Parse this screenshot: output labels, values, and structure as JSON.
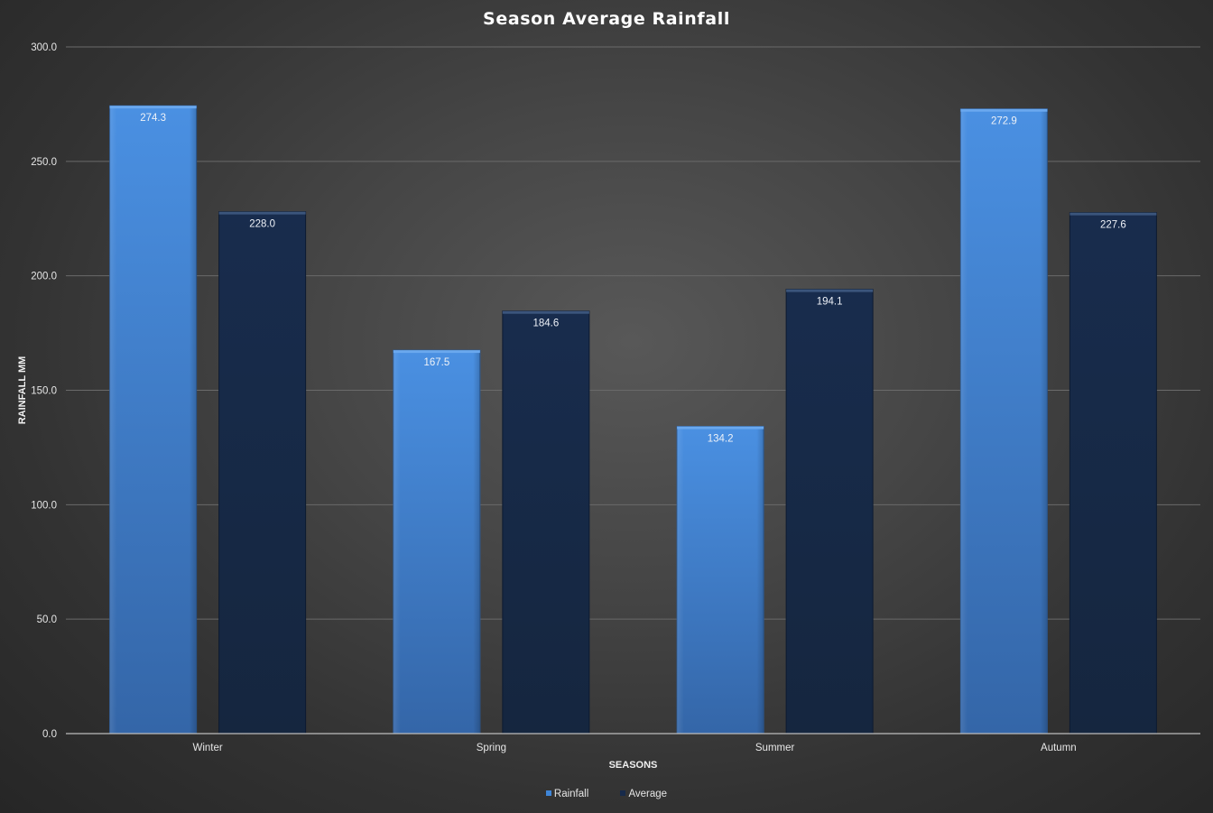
{
  "chart_data": {
    "type": "bar",
    "title": "Season Average Rainfall",
    "xlabel": "SEASONS",
    "ylabel": "RAINFALL MM",
    "categories": [
      "Winter",
      "Spring",
      "Summer",
      "Autumn"
    ],
    "series": [
      {
        "name": "Rainfall",
        "values": [
          274.3,
          167.5,
          134.2,
          272.9
        ],
        "color": "#3f86d8"
      },
      {
        "name": "Average",
        "values": [
          228.0,
          184.6,
          194.1,
          227.6
        ],
        "color": "#172a4a"
      }
    ],
    "ylim": [
      0,
      300
    ],
    "yticks": [
      0,
      50,
      100,
      150,
      200,
      250,
      300
    ],
    "ytick_labels": [
      "0.0",
      "50.0",
      "100.0",
      "150.0",
      "200.0",
      "250.0",
      "300.0"
    ],
    "data_labels": [
      [
        "274.3",
        "167.5",
        "134.2",
        "272.9"
      ],
      [
        "228.0",
        "184.6",
        "194.1",
        "227.6"
      ]
    ],
    "grid": true,
    "legend_position": "bottom"
  }
}
